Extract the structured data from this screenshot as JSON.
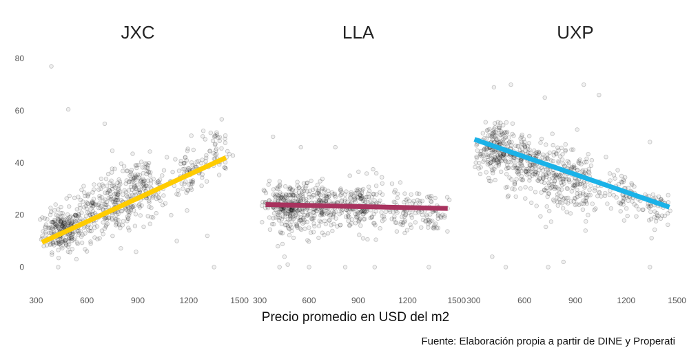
{
  "chart_data": {
    "type": "scatter",
    "xlabel": "Precio promedio en USD del m2",
    "ylabel": "",
    "caption": "Fuente: Elaboración propia a partir de DINE y Properati",
    "x_ticks": [
      300,
      600,
      900,
      1200,
      1500
    ],
    "y_ticks": [
      0,
      20,
      40,
      60,
      80
    ],
    "xlim": [
      270,
      1530
    ],
    "ylim": [
      -7,
      84
    ],
    "grid": false,
    "legend": "none",
    "panels": [
      {
        "title": "JXC",
        "color": "#FFCC00",
        "trend": {
          "x": [
            335,
            1420
          ],
          "y": [
            9.5,
            42
          ]
        },
        "clusters": [
          {
            "x": 450,
            "y": 14,
            "sx": 55,
            "sy": 4,
            "n": 220
          },
          {
            "x": 620,
            "y": 20,
            "sx": 80,
            "sy": 5,
            "n": 120
          },
          {
            "x": 780,
            "y": 25,
            "sx": 70,
            "sy": 6,
            "n": 150
          },
          {
            "x": 930,
            "y": 30,
            "sx": 70,
            "sy": 6,
            "n": 140
          },
          {
            "x": 1200,
            "y": 36,
            "sx": 50,
            "sy": 5,
            "n": 70
          },
          {
            "x": 1360,
            "y": 45,
            "sx": 55,
            "sy": 5,
            "n": 60
          }
        ],
        "outliers": [
          [
            390,
            77
          ],
          [
            490,
            60.5
          ],
          [
            705,
            55
          ],
          [
            430,
            0
          ],
          [
            1350,
            0
          ],
          [
            1310,
            12
          ],
          [
            1130,
            10
          ]
        ]
      },
      {
        "title": "LLA",
        "color": "#A8325E",
        "trend": {
          "x": [
            335,
            1445
          ],
          "y": [
            24,
            22.5
          ]
        },
        "clusters": [
          {
            "x": 470,
            "y": 23,
            "sx": 70,
            "sy": 4.5,
            "n": 260
          },
          {
            "x": 700,
            "y": 23,
            "sx": 80,
            "sy": 4.5,
            "n": 180
          },
          {
            "x": 930,
            "y": 23,
            "sx": 70,
            "sy": 5,
            "n": 150
          },
          {
            "x": 1180,
            "y": 22,
            "sx": 50,
            "sy": 4,
            "n": 60
          },
          {
            "x": 1350,
            "y": 21,
            "sx": 50,
            "sy": 4,
            "n": 60
          }
        ],
        "outliers": [
          [
            380,
            50
          ],
          [
            550,
            46
          ],
          [
            760,
            46
          ],
          [
            420,
            0
          ],
          [
            470,
            1
          ],
          [
            600,
            0
          ],
          [
            820,
            0
          ],
          [
            1000,
            0
          ],
          [
            1330,
            0
          ],
          [
            450,
            4
          ],
          [
            410,
            8
          ]
        ]
      },
      {
        "title": "UXP",
        "color": "#1AB2E8",
        "trend": {
          "x": [
            305,
            1455
          ],
          "y": [
            49,
            23
          ]
        },
        "clusters": [
          {
            "x": 420,
            "y": 45,
            "sx": 55,
            "sy": 5,
            "n": 220
          },
          {
            "x": 620,
            "y": 40,
            "sx": 70,
            "sy": 6,
            "n": 170
          },
          {
            "x": 800,
            "y": 35,
            "sx": 70,
            "sy": 6.5,
            "n": 160
          },
          {
            "x": 950,
            "y": 31,
            "sx": 50,
            "sy": 6,
            "n": 80
          },
          {
            "x": 1180,
            "y": 28,
            "sx": 50,
            "sy": 4,
            "n": 60
          },
          {
            "x": 1360,
            "y": 23,
            "sx": 50,
            "sy": 4,
            "n": 60
          }
        ],
        "outliers": [
          [
            420,
            69
          ],
          [
            520,
            70
          ],
          [
            950,
            70
          ],
          [
            1040,
            66
          ],
          [
            720,
            65
          ],
          [
            1340,
            48
          ],
          [
            410,
            4
          ],
          [
            490,
            0
          ],
          [
            740,
            0
          ],
          [
            1340,
            0
          ],
          [
            830,
            2
          ],
          [
            960,
            14
          ]
        ]
      }
    ]
  }
}
